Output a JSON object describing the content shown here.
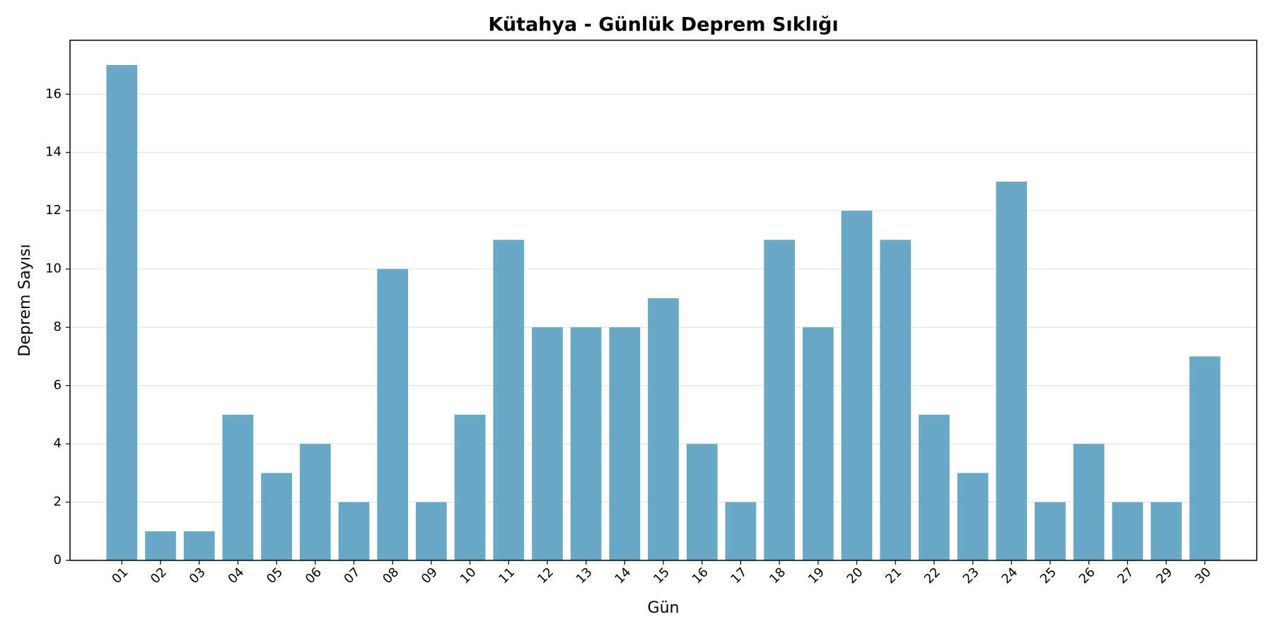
{
  "chart_data": {
    "type": "bar",
    "title": "Kütahya - Günlük Deprem Sıklığı",
    "x_label": "Gün",
    "y_label": "Deprem Sayısı",
    "categories": [
      "01",
      "02",
      "03",
      "04",
      "05",
      "06",
      "07",
      "08",
      "09",
      "10",
      "11",
      "12",
      "13",
      "14",
      "15",
      "16",
      "17",
      "18",
      "19",
      "20",
      "21",
      "22",
      "23",
      "24",
      "25",
      "26",
      "27",
      "29",
      "30"
    ],
    "values": [
      17,
      1,
      1,
      5,
      3,
      4,
      2,
      10,
      2,
      5,
      11,
      8,
      8,
      8,
      9,
      4,
      2,
      11,
      8,
      12,
      11,
      5,
      3,
      13,
      2,
      4,
      2,
      2,
      7
    ],
    "color": "#6aa9c5",
    "ylim": [
      0,
      17.85
    ],
    "yticks": [
      0,
      2,
      4,
      6,
      8,
      10,
      12,
      14,
      16
    ],
    "grid": true
  }
}
